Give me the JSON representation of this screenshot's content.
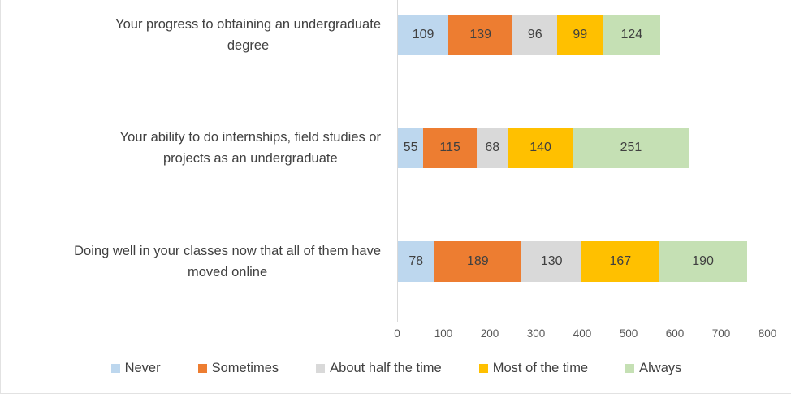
{
  "chart_data": {
    "type": "bar",
    "orientation": "horizontal",
    "stacked": true,
    "title": "",
    "xlabel": "",
    "ylabel": "",
    "grid": false,
    "data_labels": true,
    "legend_position": "bottom",
    "categories": [
      "Your progress to obtaining an undergraduate\ndegree",
      "Your ability to do internships, field studies or\nprojects as an undergraduate",
      "Doing well in your classes now that all of them have\nmoved online"
    ],
    "series": [
      {
        "name": "Never",
        "color": "#BDD7EE",
        "values": [
          109,
          55,
          78
        ]
      },
      {
        "name": "Sometimes",
        "color": "#ED7D31",
        "values": [
          139,
          115,
          189
        ]
      },
      {
        "name": "About half the time",
        "color": "#D9D9D9",
        "values": [
          96,
          68,
          130
        ]
      },
      {
        "name": "Most of the time",
        "color": "#FFC000",
        "values": [
          99,
          140,
          167
        ]
      },
      {
        "name": "Always",
        "color": "#C5E0B4",
        "values": [
          124,
          251,
          190
        ]
      }
    ],
    "x_axis": {
      "min": 0,
      "max": 800,
      "tick_interval": 100,
      "ticks": [
        0,
        100,
        200,
        300,
        400,
        500,
        600,
        700,
        800
      ]
    }
  },
  "styles": {
    "category_label_color": "#404040",
    "value_label_color": "#404040",
    "axis_tick_color": "#595959",
    "axis_line_color": "#D9D9D9",
    "border_color": "#E2E2E2",
    "background": "#FFFFFF"
  }
}
